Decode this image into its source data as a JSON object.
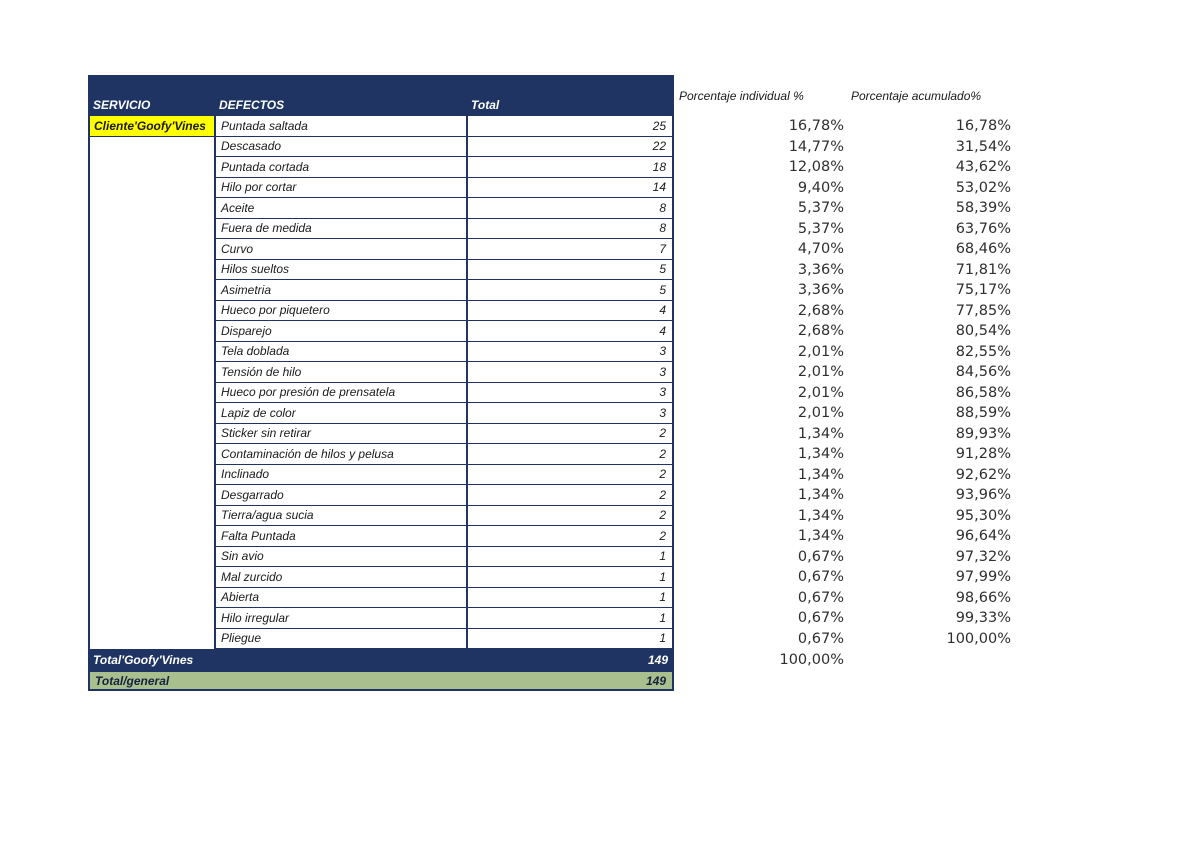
{
  "colors": {
    "navy": "#1F3463",
    "yellow": "#FFFF00",
    "green": "#A9C08E"
  },
  "table": {
    "headers": {
      "servicio": "SERVICIO",
      "defectos": "DEFECTOS",
      "total": "Total",
      "pct_individual": "Porcentaje individual %",
      "pct_acumulado": "Porcentaje acumulado%"
    },
    "rows": [
      {
        "servicio": "Cliente'Goofy'Vines",
        "defecto": "Puntada saltada",
        "total": "25",
        "pct_individual": "16,78%",
        "pct_acumulado": "16,78%"
      },
      {
        "servicio": "",
        "defecto": "Descasado",
        "total": "22",
        "pct_individual": "14,77%",
        "pct_acumulado": "31,54%"
      },
      {
        "servicio": "",
        "defecto": "Puntada cortada",
        "total": "18",
        "pct_individual": "12,08%",
        "pct_acumulado": "43,62%"
      },
      {
        "servicio": "",
        "defecto": "Hilo por cortar",
        "total": "14",
        "pct_individual": "9,40%",
        "pct_acumulado": "53,02%"
      },
      {
        "servicio": "",
        "defecto": "Aceite",
        "total": "8",
        "pct_individual": "5,37%",
        "pct_acumulado": "58,39%"
      },
      {
        "servicio": "",
        "defecto": "Fuera de medida",
        "total": "8",
        "pct_individual": "5,37%",
        "pct_acumulado": "63,76%"
      },
      {
        "servicio": "",
        "defecto": "Curvo",
        "total": "7",
        "pct_individual": "4,70%",
        "pct_acumulado": "68,46%"
      },
      {
        "servicio": "",
        "defecto": "Hilos sueltos",
        "total": "5",
        "pct_individual": "3,36%",
        "pct_acumulado": "71,81%"
      },
      {
        "servicio": "",
        "defecto": "Asimetria",
        "total": "5",
        "pct_individual": "3,36%",
        "pct_acumulado": "75,17%"
      },
      {
        "servicio": "",
        "defecto": "Hueco por piquetero",
        "total": "4",
        "pct_individual": "2,68%",
        "pct_acumulado": "77,85%"
      },
      {
        "servicio": "",
        "defecto": "Disparejo",
        "total": "4",
        "pct_individual": "2,68%",
        "pct_acumulado": "80,54%"
      },
      {
        "servicio": "",
        "defecto": "Tela doblada",
        "total": "3",
        "pct_individual": "2,01%",
        "pct_acumulado": "82,55%"
      },
      {
        "servicio": "",
        "defecto": "Tensión de hilo",
        "total": "3",
        "pct_individual": "2,01%",
        "pct_acumulado": "84,56%"
      },
      {
        "servicio": "",
        "defecto": "Hueco por presión de prensatela",
        "total": "3",
        "pct_individual": "2,01%",
        "pct_acumulado": "86,58%"
      },
      {
        "servicio": "",
        "defecto": "Lapiz de color",
        "total": "3",
        "pct_individual": "2,01%",
        "pct_acumulado": "88,59%"
      },
      {
        "servicio": "",
        "defecto": "Sticker sin retirar",
        "total": "2",
        "pct_individual": "1,34%",
        "pct_acumulado": "89,93%"
      },
      {
        "servicio": "",
        "defecto": "Contaminación de hilos y pelusa",
        "total": "2",
        "pct_individual": "1,34%",
        "pct_acumulado": "91,28%"
      },
      {
        "servicio": "",
        "defecto": "Inclinado",
        "total": "2",
        "pct_individual": "1,34%",
        "pct_acumulado": "92,62%"
      },
      {
        "servicio": "",
        "defecto": "Desgarrado",
        "total": "2",
        "pct_individual": "1,34%",
        "pct_acumulado": "93,96%"
      },
      {
        "servicio": "",
        "defecto": "Tierra/agua sucia",
        "total": "2",
        "pct_individual": "1,34%",
        "pct_acumulado": "95,30%"
      },
      {
        "servicio": "",
        "defecto": "Falta Puntada",
        "total": "2",
        "pct_individual": "1,34%",
        "pct_acumulado": "96,64%"
      },
      {
        "servicio": "",
        "defecto": "Sin avio",
        "total": "1",
        "pct_individual": "0,67%",
        "pct_acumulado": "97,32%"
      },
      {
        "servicio": "",
        "defecto": "Mal zurcido",
        "total": "1",
        "pct_individual": "0,67%",
        "pct_acumulado": "97,99%"
      },
      {
        "servicio": "",
        "defecto": "Abierta",
        "total": "1",
        "pct_individual": "0,67%",
        "pct_acumulado": "98,66%"
      },
      {
        "servicio": "",
        "defecto": "Hilo irregular",
        "total": "1",
        "pct_individual": "0,67%",
        "pct_acumulado": "99,33%"
      },
      {
        "servicio": "",
        "defecto": "Pliegue",
        "total": "1",
        "pct_individual": "0,67%",
        "pct_acumulado": "100,00%"
      }
    ],
    "total_row": {
      "label": "Total'Goofy'Vines",
      "total": "149",
      "pct_individual": "100,00%"
    },
    "grand_total_row": {
      "label": "Total/general",
      "total": "149"
    }
  }
}
